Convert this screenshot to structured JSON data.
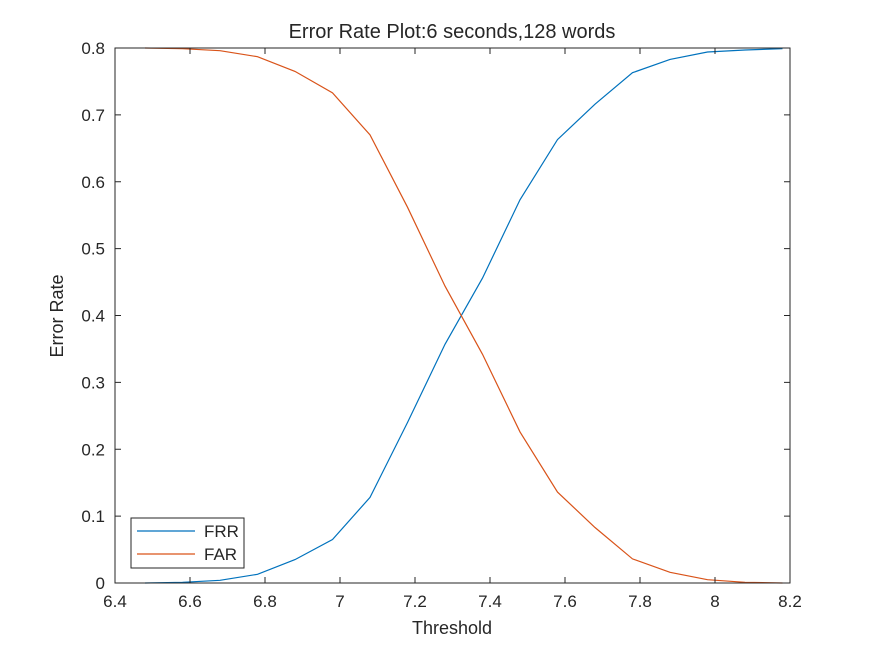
{
  "chart_data": {
    "type": "line",
    "title": "Error Rate Plot:6 seconds,128 words",
    "xlabel": "Threshold",
    "ylabel": "Error Rate",
    "xlim": [
      6.4,
      8.2
    ],
    "ylim": [
      0,
      0.8
    ],
    "xticks": [
      6.4,
      6.6,
      6.8,
      7,
      7.2,
      7.4,
      7.6,
      7.8,
      8,
      8.2
    ],
    "xtick_labels": [
      "6.4",
      "6.6",
      "6.8",
      "7",
      "7.2",
      "7.4",
      "7.6",
      "7.8",
      "8",
      "8.2"
    ],
    "yticks": [
      0,
      0.1,
      0.2,
      0.3,
      0.4,
      0.5,
      0.6,
      0.7,
      0.8
    ],
    "ytick_labels": [
      "0",
      "0.1",
      "0.2",
      "0.3",
      "0.4",
      "0.5",
      "0.6",
      "0.7",
      "0.8"
    ],
    "grid": false,
    "legend_position": "bottom-left",
    "x": [
      6.48,
      6.58,
      6.68,
      6.78,
      6.88,
      6.98,
      7.08,
      7.18,
      7.28,
      7.38,
      7.48,
      7.58,
      7.68,
      7.78,
      7.88,
      7.98,
      8.08,
      8.18
    ],
    "series": [
      {
        "name": "FRR",
        "color": "#0072BD",
        "values": [
          0.0,
          0.001,
          0.004,
          0.013,
          0.035,
          0.065,
          0.128,
          0.24,
          0.357,
          0.456,
          0.573,
          0.663,
          0.716,
          0.763,
          0.783,
          0.794,
          0.797,
          0.799
        ]
      },
      {
        "name": "FAR",
        "color": "#D95319",
        "values": [
          0.8,
          0.799,
          0.796,
          0.787,
          0.765,
          0.733,
          0.67,
          0.562,
          0.444,
          0.342,
          0.226,
          0.136,
          0.083,
          0.036,
          0.016,
          0.005,
          0.001,
          0.0
        ]
      }
    ]
  }
}
